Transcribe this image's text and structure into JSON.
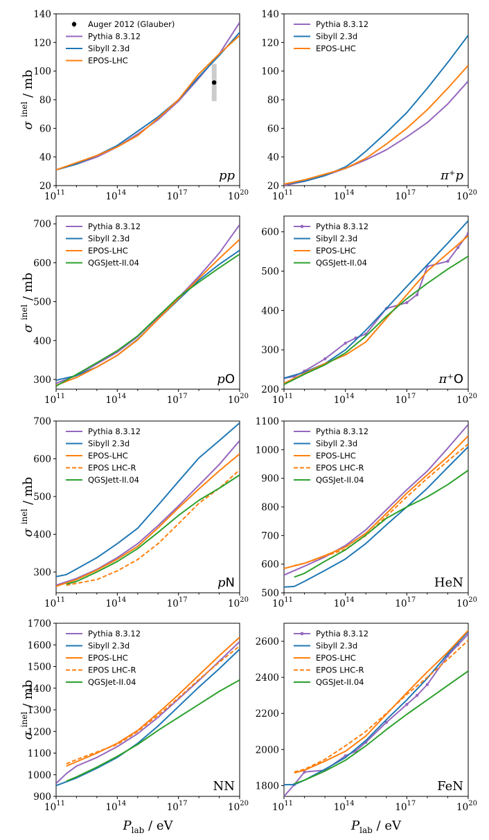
{
  "figure": {
    "ylabel": "σ inel / mb",
    "xlabel": "Plab / eV",
    "xticks": [
      11,
      14,
      17,
      20
    ],
    "xtick_base": "10"
  },
  "colors": {
    "Pythia 8.3.12": "#9467bd",
    "Sibyll 2.3d": "#1f77b4",
    "EPOS-LHC": "#ff7f0e",
    "EPOS LHC-R": "#ff7f0e",
    "QGSJett-II.04": "#2ca02c",
    "QGSJet-II.04": "#2ca02c",
    "Auger": "#000000",
    "auger_error": "#cccccc"
  },
  "chart_data": [
    {
      "type": "line",
      "panel": "pp",
      "label": "pp",
      "label_style": "italic",
      "xlim": [
        11,
        20
      ],
      "ylim": [
        20,
        140
      ],
      "yticks": [
        20,
        40,
        60,
        80,
        100,
        120,
        140
      ],
      "legend": "top-left",
      "series": [
        {
          "name": "Pythia 8.3.12",
          "x": [
            11,
            12,
            13,
            14,
            15,
            16,
            17,
            18,
            19,
            20
          ],
          "y": [
            31,
            35,
            40,
            47,
            56,
            66,
            79,
            95,
            112,
            134
          ]
        },
        {
          "name": "Sibyll 2.3d",
          "x": [
            11,
            12,
            13,
            14,
            15,
            16,
            17,
            18,
            19,
            20
          ],
          "y": [
            31,
            35,
            41,
            48,
            58,
            68,
            80,
            96,
            111,
            127
          ]
        },
        {
          "name": "EPOS-LHC",
          "x": [
            11,
            12,
            13,
            14,
            15,
            16,
            17,
            18,
            19,
            20
          ],
          "y": [
            31,
            36,
            41,
            47,
            55,
            67,
            80,
            98,
            112,
            125
          ]
        }
      ],
      "points": [
        {
          "name": "Auger 2012 (Glauber)",
          "x": 18.75,
          "y": 92,
          "yerr": 13
        }
      ]
    },
    {
      "type": "line",
      "panel": "pi+p",
      "label": "π⁺p",
      "label_style": "italic",
      "xlim": [
        11,
        20
      ],
      "ylim": [
        20,
        140
      ],
      "yticks": [
        20,
        40,
        60,
        80,
        100,
        120,
        140
      ],
      "legend": "top-left",
      "series": [
        {
          "name": "Pythia 8.3.12",
          "x": [
            11,
            12,
            13,
            14,
            15,
            16,
            17,
            18,
            19,
            20
          ],
          "y": [
            20,
            23,
            27,
            32,
            38,
            45,
            54,
            64,
            77,
            93
          ]
        },
        {
          "name": "Sibyll 2.3d",
          "x": [
            11,
            12,
            13,
            14,
            14.5,
            15,
            16,
            17,
            18,
            19,
            20
          ],
          "y": [
            21,
            23,
            27,
            33,
            38,
            44,
            57,
            71,
            88,
            106,
            125
          ]
        },
        {
          "name": "EPOS-LHC",
          "x": [
            11,
            12,
            13,
            14,
            15,
            16,
            17,
            18,
            19,
            20
          ],
          "y": [
            21,
            24,
            28,
            32,
            39,
            49,
            60,
            73,
            88,
            104
          ]
        }
      ]
    },
    {
      "type": "line",
      "panel": "pO",
      "label": "pO",
      "xlim": [
        11,
        20
      ],
      "ylim": [
        275,
        720
      ],
      "yticks": [
        300,
        400,
        500,
        600,
        700
      ],
      "legend": "top-left",
      "series": [
        {
          "name": "Pythia 8.3.12",
          "x": [
            11,
            12,
            13,
            14,
            15,
            16,
            17,
            18,
            19,
            20
          ],
          "y": [
            290,
            310,
            340,
            370,
            410,
            460,
            510,
            565,
            625,
            698
          ]
        },
        {
          "name": "Sibyll 2.3d",
          "x": [
            11,
            12,
            13,
            14,
            15,
            16,
            17,
            18,
            19,
            20
          ],
          "y": [
            298,
            310,
            332,
            362,
            403,
            455,
            505,
            555,
            596,
            632
          ]
        },
        {
          "name": "EPOS-LHC",
          "x": [
            11,
            12,
            13,
            14,
            15,
            16,
            17,
            18,
            19,
            20
          ],
          "y": [
            285,
            305,
            332,
            362,
            402,
            455,
            508,
            560,
            611,
            660
          ]
        },
        {
          "name": "QGSJett-II.04",
          "x": [
            11,
            12,
            13,
            14,
            15,
            16,
            17,
            18,
            19,
            20
          ],
          "y": [
            283,
            313,
            343,
            374,
            412,
            462,
            512,
            550,
            587,
            622
          ]
        }
      ]
    },
    {
      "type": "line",
      "panel": "pi+O",
      "label": "π⁺O",
      "xlim": [
        11,
        20
      ],
      "ylim": [
        200,
        640
      ],
      "yticks": [
        200,
        300,
        400,
        500,
        600
      ],
      "legend": "top-left",
      "series": [
        {
          "name": "Pythia 8.3.12",
          "x": [
            11,
            11.5,
            12,
            13,
            14,
            14.5,
            15,
            16,
            17,
            17.5,
            18,
            19,
            19.5,
            20
          ],
          "y": [
            228,
            232,
            246,
            277,
            317,
            330,
            340,
            405,
            420,
            440,
            512,
            525,
            560,
            596
          ]
        },
        {
          "name": "Sibyll 2.3d",
          "x": [
            11,
            12,
            13,
            14,
            15,
            16,
            17,
            18,
            19,
            20
          ],
          "y": [
            228,
            243,
            265,
            300,
            350,
            405,
            461,
            516,
            571,
            628
          ]
        },
        {
          "name": "EPOS-LHC",
          "x": [
            11,
            12,
            13,
            14,
            15,
            16,
            17,
            18,
            19,
            20
          ],
          "y": [
            215,
            240,
            265,
            287,
            320,
            380,
            440,
            500,
            545,
            590
          ]
        },
        {
          "name": "QGSJett-II.04",
          "x": [
            11,
            12,
            13,
            14,
            15,
            16,
            17,
            18,
            19,
            20
          ],
          "y": [
            212,
            238,
            262,
            292,
            335,
            385,
            430,
            469,
            505,
            538
          ]
        }
      ]
    },
    {
      "type": "line",
      "panel": "pN",
      "label": "pN",
      "label_style": "italic-p",
      "xlim": [
        11,
        20
      ],
      "ylim": [
        245,
        700
      ],
      "yticks": [
        300,
        400,
        500,
        600,
        700
      ],
      "legend": "top-left",
      "series": [
        {
          "name": "Pythia 8.3.12",
          "x": [
            11,
            12,
            13,
            14,
            15,
            16,
            17,
            18,
            19,
            20
          ],
          "y": [
            265,
            283,
            307,
            338,
            375,
            423,
            475,
            530,
            585,
            648
          ]
        },
        {
          "name": "Sibyll 2.3d",
          "x": [
            11,
            11.5,
            12,
            13,
            14,
            15,
            16,
            17,
            18,
            19,
            20
          ],
          "y": [
            288,
            293,
            308,
            338,
            375,
            416,
            477,
            540,
            602,
            648,
            695
          ]
        },
        {
          "name": "EPOS-LHC",
          "x": [
            11,
            12,
            13,
            14,
            15,
            16,
            17,
            18,
            19,
            20
          ],
          "y": [
            262,
            280,
            305,
            334,
            368,
            417,
            470,
            520,
            568,
            613
          ]
        },
        {
          "name": "EPOS LHC-R",
          "x": [
            11.5,
            12,
            13,
            14,
            15,
            16,
            17,
            18,
            19,
            20
          ],
          "y": [
            265,
            270,
            280,
            303,
            333,
            375,
            428,
            482,
            522,
            571
          ]
        },
        {
          "name": "QGSJett-II.04",
          "x": [
            11.5,
            12,
            13,
            14,
            15,
            16,
            17,
            18,
            19,
            20
          ],
          "y": [
            268,
            275,
            300,
            328,
            362,
            405,
            450,
            490,
            522,
            557
          ]
        }
      ]
    },
    {
      "type": "line",
      "panel": "HeN",
      "label": "HeN",
      "xlim": [
        11,
        20
      ],
      "ylim": [
        500,
        1100
      ],
      "yticks": [
        500,
        600,
        700,
        800,
        900,
        1000,
        1100
      ],
      "legend": "top-left",
      "series": [
        {
          "name": "Pythia 8.3.12",
          "x": [
            11,
            12,
            13,
            14,
            15,
            16,
            17,
            18,
            19,
            20
          ],
          "y": [
            562,
            593,
            625,
            665,
            720,
            790,
            860,
            925,
            1005,
            1088
          ]
        },
        {
          "name": "Sibyll 2.3d",
          "x": [
            11,
            11.5,
            12,
            13,
            14,
            15,
            16,
            17,
            18,
            19,
            20
          ],
          "y": [
            520,
            522,
            540,
            578,
            618,
            672,
            737,
            800,
            865,
            938,
            1010
          ]
        },
        {
          "name": "EPOS-LHC",
          "x": [
            11,
            12,
            13,
            14,
            15,
            16,
            17,
            18,
            19,
            20
          ],
          "y": [
            585,
            603,
            630,
            660,
            708,
            777,
            848,
            912,
            975,
            1048
          ]
        },
        {
          "name": "EPOS LHC-R",
          "x": [
            11.5,
            12,
            13,
            14,
            15,
            16,
            17,
            18,
            19,
            20
          ],
          "y": [
            595,
            603,
            628,
            652,
            700,
            767,
            835,
            900,
            960,
            1020
          ]
        },
        {
          "name": "QGSJet-II.04",
          "x": [
            11.5,
            12,
            13,
            14,
            15,
            16,
            17,
            18,
            19,
            20
          ],
          "y": [
            555,
            568,
            610,
            650,
            702,
            760,
            800,
            835,
            878,
            928
          ]
        }
      ]
    },
    {
      "type": "line",
      "panel": "NN",
      "label": "NN",
      "xlim": [
        11,
        20
      ],
      "ylim": [
        900,
        1700
      ],
      "yticks": [
        900,
        1000,
        1100,
        1200,
        1300,
        1400,
        1500,
        1600,
        1700
      ],
      "legend": "top-left",
      "series": [
        {
          "name": "Pythia 8.3.12",
          "x": [
            11,
            11.5,
            12,
            13,
            14,
            15,
            16,
            17,
            18,
            19,
            20
          ],
          "y": [
            960,
            1005,
            1040,
            1080,
            1130,
            1190,
            1265,
            1350,
            1435,
            1525,
            1615
          ]
        },
        {
          "name": "Sibyll 2.3d",
          "x": [
            11,
            12,
            13,
            14,
            15,
            16,
            17,
            18,
            19,
            20
          ],
          "y": [
            950,
            985,
            1030,
            1080,
            1145,
            1225,
            1315,
            1405,
            1490,
            1580
          ]
        },
        {
          "name": "EPOS-LHC",
          "x": [
            11.5,
            12,
            13,
            14,
            15,
            16,
            17,
            18,
            19,
            20
          ],
          "y": [
            1040,
            1060,
            1100,
            1145,
            1205,
            1285,
            1370,
            1460,
            1550,
            1635
          ]
        },
        {
          "name": "EPOS LHC-R",
          "x": [
            11.5,
            12,
            13,
            14,
            15,
            16,
            17,
            18,
            19,
            20
          ],
          "y": [
            1050,
            1070,
            1105,
            1140,
            1200,
            1275,
            1355,
            1440,
            1520,
            1595
          ]
        },
        {
          "name": "QGSJet-II.04",
          "x": [
            11.5,
            12,
            13,
            14,
            15,
            16,
            17,
            18,
            19,
            20
          ],
          "y": [
            970,
            990,
            1035,
            1085,
            1140,
            1205,
            1265,
            1325,
            1385,
            1438
          ]
        }
      ]
    },
    {
      "type": "line",
      "panel": "FeN",
      "label": "FeN",
      "xlim": [
        11,
        20
      ],
      "ylim": [
        1740,
        2700
      ],
      "yticks": [
        1800,
        2000,
        2200,
        2400,
        2600
      ],
      "legend": "top-left",
      "series": [
        {
          "name": "Pythia 8.3.12",
          "x": [
            11,
            11.5,
            12,
            13,
            14,
            14.5,
            15,
            16,
            17,
            17.5,
            18,
            19,
            19.5,
            20
          ],
          "y": [
            1740,
            1805,
            1875,
            1885,
            1965,
            1990,
            2040,
            2150,
            2250,
            2300,
            2360,
            2520,
            2580,
            2640
          ]
        },
        {
          "name": "Sibyll 2.3d",
          "x": [
            11,
            11.5,
            12,
            13,
            14,
            15,
            16,
            17,
            18,
            19,
            20
          ],
          "y": [
            1805,
            1805,
            1830,
            1890,
            1955,
            2050,
            2165,
            2275,
            2395,
            2530,
            2655
          ]
        },
        {
          "name": "EPOS-LHC",
          "x": [
            11.5,
            12,
            13,
            14,
            15,
            16,
            17,
            18,
            19,
            20
          ],
          "y": [
            1870,
            1885,
            1935,
            1990,
            2075,
            2195,
            2315,
            2430,
            2540,
            2660
          ]
        },
        {
          "name": "EPOS LHC-R",
          "x": [
            11.5,
            12,
            13,
            14,
            15,
            16,
            17,
            18,
            19,
            20
          ],
          "y": [
            1875,
            1890,
            1945,
            2020,
            2100,
            2200,
            2305,
            2400,
            2500,
            2605
          ]
        },
        {
          "name": "QGSJet-II.04",
          "x": [
            11.5,
            12,
            13,
            14,
            15,
            16,
            17,
            18,
            19,
            20
          ],
          "y": [
            1810,
            1830,
            1880,
            1940,
            2020,
            2110,
            2195,
            2275,
            2355,
            2435
          ]
        }
      ]
    }
  ]
}
